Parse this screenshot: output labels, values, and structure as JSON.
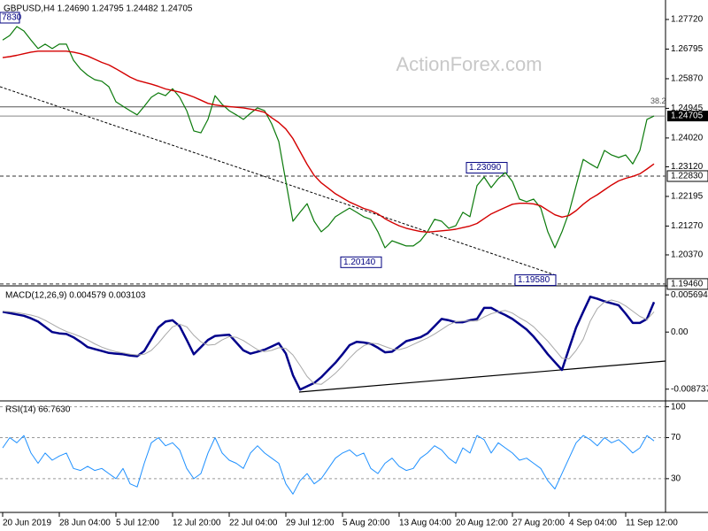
{
  "chart_data": [
    {
      "type": "line",
      "title": "GBPUSD,H4  1.24690 1.24795 1.24482 1.24705",
      "watermark": "ActionForex.com",
      "categories": [
        "20 Jun 2019",
        null,
        null,
        null,
        null,
        null,
        null,
        null,
        "28 Jun 04:00",
        null,
        null,
        null,
        null,
        null,
        null,
        null,
        "5 Jul 12:00",
        null,
        null,
        null,
        null,
        null,
        null,
        null,
        "12 Jul 20:00",
        null,
        null,
        null,
        null,
        null,
        null,
        null,
        "22 Jul 04:00",
        null,
        null,
        null,
        null,
        null,
        null,
        null,
        "29 Jul 12:00",
        null,
        null,
        null,
        null,
        null,
        null,
        null,
        "5 Aug 20:00",
        null,
        null,
        null,
        null,
        null,
        null,
        null,
        "13 Aug 04:00",
        null,
        null,
        null,
        null,
        null,
        null,
        null,
        "20 Aug 12:00",
        null,
        null,
        null,
        null,
        null,
        null,
        null,
        "27 Aug 20:00",
        null,
        null,
        null,
        null,
        null,
        null,
        null,
        "4 Sep 04:00",
        null,
        null,
        null,
        null,
        null,
        null,
        null,
        "11 Sep 12:00",
        null,
        null,
        null,
        null
      ],
      "series": [
        {
          "color": "#0b7a0b",
          "width": 1.2,
          "values": [
            1.2708,
            1.2722,
            1.275,
            1.2736,
            1.2708,
            1.2681,
            1.2695,
            1.2681,
            1.2695,
            1.2695,
            1.2645,
            1.2617,
            1.2598,
            1.2584,
            1.2579,
            1.2562,
            1.2515,
            1.2501,
            1.2487,
            1.2474,
            1.2501,
            1.2529,
            1.2543,
            1.2534,
            1.2556,
            1.2529,
            1.2487,
            1.2424,
            1.2418,
            1.246,
            1.2534,
            1.2507,
            1.2487,
            1.2474,
            1.246,
            1.2479,
            1.2496,
            1.2487,
            1.2446,
            1.2391,
            1.2266,
            1.2142,
            1.217,
            1.2197,
            1.2142,
            1.2109,
            1.2128,
            1.2156,
            1.217,
            1.2183,
            1.217,
            1.2156,
            1.2148,
            1.2109,
            1.2059,
            1.2081,
            1.2073,
            1.2065,
            1.2065,
            1.2081,
            1.2109,
            1.2148,
            1.2142,
            1.212,
            1.2128,
            1.217,
            1.2156,
            1.2253,
            1.228,
            1.2247,
            1.2275,
            1.2294,
            1.2266,
            1.2211,
            1.2203,
            1.2211,
            1.2183,
            1.2109,
            1.2059,
            1.2109,
            1.217,
            1.2253,
            1.2335,
            1.2321,
            1.2308,
            1.2363,
            1.2349,
            1.2341,
            1.2349,
            1.2321,
            1.2363,
            1.246,
            1.24705
          ]
        },
        {
          "color": "#d40000",
          "width": 1.4,
          "values": [
            1.2653,
            1.2656,
            1.266,
            1.2665,
            1.267,
            1.2673,
            1.2673,
            1.2673,
            1.2673,
            1.2673,
            1.267,
            1.2665,
            1.2658,
            1.2648,
            1.2638,
            1.263,
            1.2618,
            1.2605,
            1.2592,
            1.2582,
            1.2576,
            1.257,
            1.2563,
            1.2555,
            1.255,
            1.2545,
            1.2538,
            1.253,
            1.252,
            1.251,
            1.2505,
            1.2502,
            1.25,
            1.2498,
            1.2496,
            1.2492,
            1.2488,
            1.2482,
            1.2465,
            1.245,
            1.243,
            1.24,
            1.236,
            1.232,
            1.2285,
            1.2262,
            1.2245,
            1.2228,
            1.2215,
            1.2202,
            1.2192,
            1.2182,
            1.2175,
            1.2165,
            1.215,
            1.2138,
            1.2128,
            1.212,
            1.2115,
            1.211,
            1.2108,
            1.211,
            1.2112,
            1.2114,
            1.2117,
            1.2122,
            1.2127,
            1.2135,
            1.215,
            1.2165,
            1.2175,
            1.2185,
            1.2195,
            1.2198,
            1.2198,
            1.2196,
            1.219,
            1.2176,
            1.2162,
            1.2155,
            1.216,
            1.2175,
            1.2195,
            1.2212,
            1.2225,
            1.224,
            1.2255,
            1.2268,
            1.2276,
            1.2282,
            1.229,
            1.2305,
            1.2321
          ]
        }
      ],
      "ylim": [
        1.1943,
        1.28328
      ],
      "yticks": [
        {
          "value": 1.2772,
          "label": "1.27720"
        },
        {
          "value": 1.26795,
          "label": "1.26795"
        },
        {
          "value": 1.2587,
          "label": "1.25870"
        },
        {
          "value": 1.24945,
          "label": "1.24945"
        },
        {
          "value": 1.2402,
          "label": "1.24020"
        },
        {
          "value": 1.2312,
          "label": "1.23120"
        },
        {
          "value": 1.22195,
          "label": "1.22195"
        },
        {
          "value": 1.2127,
          "label": "1.21270"
        },
        {
          "value": 1.2037,
          "label": "1.20370"
        }
      ],
      "price_line": 1.24705,
      "levels": [
        {
          "value": 1.2283,
          "label": "1.22830"
        },
        {
          "value": 1.1946,
          "label": "1.19460"
        }
      ],
      "annotations": [
        {
          "value": 1.2309,
          "label": "1.23090"
        },
        {
          "value": 1.2014,
          "label": "1.20140"
        },
        {
          "value": 1.1958,
          "label": "1.19580"
        }
      ],
      "high_note": "7830",
      "fib_label": "38.2",
      "fib_value": 1.2499
    },
    {
      "type": "line",
      "title": "MACD(12,26,9) 0.004579 0.003103",
      "series": [
        {
          "color": "#00008b",
          "width": 2.5,
          "values": [
            0.0031,
            0.0029,
            0.0027,
            0.0025,
            0.0021,
            0.0016,
            0.0008,
            0.0,
            -0.0002,
            -0.0003,
            -0.0008,
            -0.0015,
            -0.0023,
            -0.0026,
            -0.0029,
            -0.0032,
            -0.0033,
            -0.0034,
            -0.0036,
            -0.0037,
            -0.0029,
            -0.0011,
            0.0007,
            0.0016,
            0.0018,
            0.0009,
            -0.0012,
            -0.0034,
            -0.0023,
            -0.0012,
            -0.0006,
            -0.0005,
            -0.0004,
            -0.0016,
            -0.0028,
            -0.0033,
            -0.003,
            -0.0027,
            -0.0022,
            -0.0017,
            -0.0033,
            -0.0066,
            -0.0088,
            -0.0083,
            -0.0078,
            -0.0069,
            -0.0058,
            -0.0047,
            -0.0034,
            -0.002,
            -0.0015,
            -0.0016,
            -0.0018,
            -0.0024,
            -0.0031,
            -0.003,
            -0.0022,
            -0.0014,
            -0.0011,
            -0.0008,
            -0.0002,
            0.0009,
            0.002,
            0.0018,
            0.0015,
            0.0015,
            0.0018,
            0.002,
            0.0037,
            0.0037,
            0.0031,
            0.0026,
            0.002,
            0.0012,
            0.0004,
            -0.0007,
            -0.002,
            -0.0034,
            -0.0046,
            -0.0058,
            -0.0025,
            0.0007,
            0.0031,
            0.0054,
            0.0051,
            0.0047,
            0.0044,
            0.0041,
            0.0028,
            0.0014,
            0.0014,
            0.002,
            0.004579
          ]
        },
        {
          "color": "#a8a8a8",
          "width": 1,
          "values": [
            0.0032,
            0.0031,
            0.003,
            0.0028,
            0.0026,
            0.0023,
            0.0018,
            0.0012,
            0.0006,
            0.0001,
            -0.0003,
            -0.0007,
            -0.0012,
            -0.0018,
            -0.0023,
            -0.0027,
            -0.003,
            -0.0032,
            -0.0034,
            -0.0035,
            -0.0034,
            -0.0028,
            -0.0017,
            -0.0004,
            0.0008,
            0.0012,
            0.0008,
            -0.0005,
            -0.0015,
            -0.002,
            -0.0019,
            -0.0012,
            -0.0007,
            -0.0008,
            -0.0013,
            -0.002,
            -0.0027,
            -0.003,
            -0.0028,
            -0.0024,
            -0.0025,
            -0.0035,
            -0.0051,
            -0.0068,
            -0.0079,
            -0.008,
            -0.0072,
            -0.0063,
            -0.0052,
            -0.004,
            -0.0029,
            -0.0021,
            -0.0017,
            -0.0018,
            -0.0022,
            -0.0026,
            -0.0027,
            -0.0024,
            -0.0019,
            -0.0014,
            -0.0009,
            -0.0003,
            0.0004,
            0.0011,
            0.0016,
            0.0017,
            0.0017,
            0.0017,
            0.0023,
            0.0028,
            0.0031,
            0.0033,
            0.0029,
            0.0022,
            0.0016,
            0.0008,
            -0.0003,
            -0.0014,
            -0.0027,
            -0.004,
            -0.0041,
            -0.0028,
            -0.0011,
            0.0017,
            0.0036,
            0.0046,
            0.0049,
            0.0046,
            0.004,
            0.0032,
            0.0024,
            0.0019,
            0.003103
          ]
        }
      ],
      "ylim": [
        -0.0104,
        0.0068
      ],
      "yticks": [
        0.005694,
        {
          "value": 0,
          "label": "0.00"
        },
        -0.008737
      ],
      "grid": false
    },
    {
      "type": "line",
      "title": "RSI(14) 66.7630",
      "series": [
        {
          "color": "#1e90ff",
          "width": 1,
          "values": [
            60,
            70,
            65,
            72,
            55,
            45,
            55,
            48,
            52,
            55,
            40,
            38,
            42,
            38,
            40,
            35,
            30,
            40,
            25,
            22,
            45,
            65,
            70,
            62,
            65,
            58,
            40,
            30,
            35,
            55,
            70,
            55,
            48,
            45,
            40,
            55,
            62,
            55,
            50,
            45,
            25,
            15,
            28,
            35,
            25,
            30,
            40,
            50,
            55,
            58,
            52,
            55,
            40,
            35,
            45,
            50,
            42,
            38,
            40,
            50,
            55,
            62,
            58,
            50,
            45,
            60,
            55,
            72,
            68,
            55,
            65,
            60,
            55,
            48,
            50,
            45,
            40,
            28,
            20,
            35,
            50,
            65,
            72,
            68,
            62,
            70,
            65,
            68,
            62,
            55,
            60,
            72,
            66.763
          ]
        }
      ],
      "ylim": [
        -2,
        104
      ],
      "yticks": [
        100,
        70,
        30
      ],
      "grid": true
    }
  ]
}
